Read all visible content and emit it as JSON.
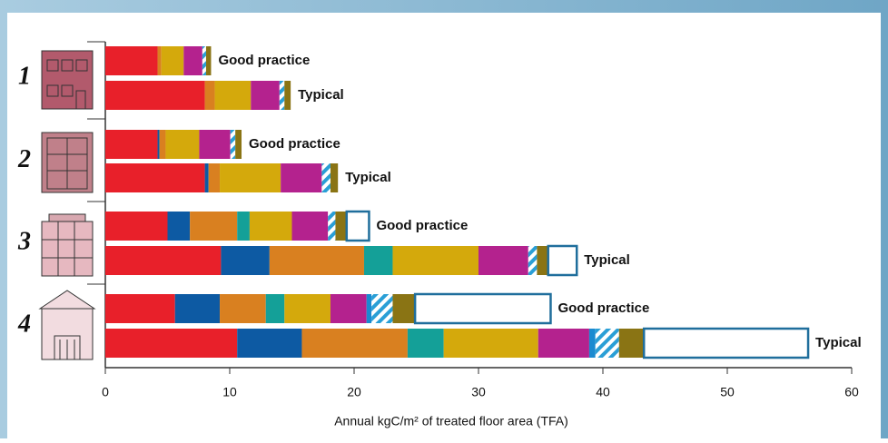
{
  "chart_data": {
    "type": "stacked-barh",
    "categories": [
      "Good practice",
      "Typical",
      "Good practice",
      "Typical",
      "Good practice",
      "Typical",
      "Good practice",
      "Typical"
    ],
    "groups": [
      "1",
      "2",
      "3",
      "4"
    ],
    "xlabel": "Annual kgC/m² of treated floor area (TFA)",
    "xlim": [
      0,
      60
    ],
    "xticks": [
      0,
      10,
      20,
      30,
      40,
      50,
      60
    ],
    "series": [
      {
        "color": "#e8202a",
        "values": [
          4.2,
          8.0,
          4.2,
          8.0,
          5.0,
          9.3,
          5.6,
          10.6
        ]
      },
      {
        "color": "#0d5aa3",
        "values": [
          0,
          0,
          0.15,
          0.3,
          1.8,
          3.9,
          3.6,
          5.2
        ]
      },
      {
        "color": "#d98020",
        "values": [
          0.3,
          0.8,
          0.5,
          0.9,
          3.8,
          7.6,
          3.7,
          8.5
        ]
      },
      {
        "color": "#14a098",
        "values": [
          0,
          0,
          0,
          0,
          1.0,
          2.3,
          1.5,
          2.9
        ]
      },
      {
        "color": "#d4a90c",
        "values": [
          1.8,
          2.9,
          2.7,
          4.9,
          3.4,
          6.9,
          3.7,
          7.6
        ]
      },
      {
        "color": "#b4228e",
        "values": [
          1.5,
          2.3,
          2.5,
          3.3,
          2.9,
          4.0,
          2.9,
          4.1
        ]
      },
      {
        "color": "#1a8ad0",
        "values": [
          0,
          0,
          0,
          0,
          0,
          0,
          0.4,
          0.5
        ]
      },
      {
        "color": "#2a9fd6",
        "pattern": "hatch",
        "values": [
          0.3,
          0.4,
          0.4,
          0.7,
          0.6,
          0.7,
          1.7,
          1.9
        ]
      },
      {
        "color": "#8a7414",
        "values": [
          0.4,
          0.5,
          0.5,
          0.6,
          0.9,
          0.9,
          1.8,
          2.0
        ]
      },
      {
        "color": "#ffffff",
        "outline": "#1f6e9c",
        "values": [
          0,
          0,
          0,
          0,
          1.8,
          2.3,
          10.9,
          13.2
        ]
      }
    ]
  }
}
